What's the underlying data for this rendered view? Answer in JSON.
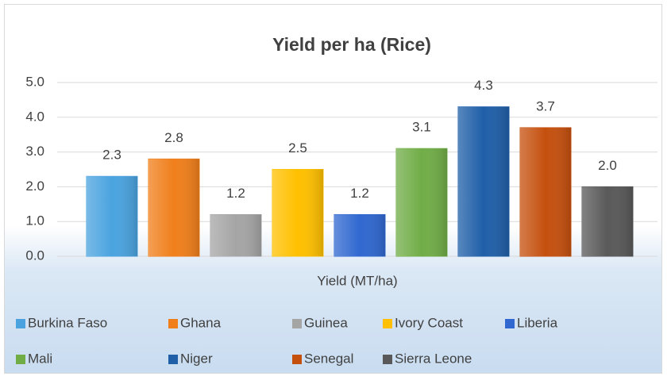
{
  "chart_data": {
    "type": "bar",
    "title": "Yield per ha (Rice)",
    "categories": [
      "Yield (MT/ha)"
    ],
    "series": [
      {
        "name": "Burkina Faso",
        "color": "#4aa3df",
        "values": [
          2.3
        ],
        "value_labels": [
          "2.3"
        ]
      },
      {
        "name": "Ghana",
        "color": "#f07f1b",
        "values": [
          2.8
        ],
        "value_labels": [
          "2.8"
        ]
      },
      {
        "name": "Guinea",
        "color": "#a5a5a5",
        "values": [
          1.2
        ],
        "value_labels": [
          "1.2"
        ]
      },
      {
        "name": "Ivory Coast",
        "color": "#ffc000",
        "values": [
          2.5
        ],
        "value_labels": [
          "2.5"
        ]
      },
      {
        "name": "Liberia",
        "color": "#3068d0",
        "values": [
          1.2
        ],
        "value_labels": [
          "1.2"
        ]
      },
      {
        "name": "Mali",
        "color": "#70ad47",
        "values": [
          3.1
        ],
        "value_labels": [
          "3.1"
        ]
      },
      {
        "name": "Niger",
        "color": "#1f5fa8",
        "values": [
          4.3
        ],
        "value_labels": [
          "4.3"
        ]
      },
      {
        "name": "Senegal",
        "color": "#c5500e",
        "values": [
          3.7
        ],
        "value_labels": [
          "3.7"
        ]
      },
      {
        "name": "Sierra Leone",
        "color": "#595959",
        "values": [
          2.0
        ],
        "value_labels": [
          "2.0"
        ]
      }
    ],
    "ylim": [
      0,
      5
    ],
    "yticks": [
      {
        "value": 0,
        "label": "0.0"
      },
      {
        "value": 1,
        "label": "1.0"
      },
      {
        "value": 2,
        "label": "2.0"
      },
      {
        "value": 3,
        "label": "3.0"
      },
      {
        "value": 4,
        "label": "4.0"
      },
      {
        "value": 5,
        "label": "5.0"
      }
    ],
    "grid": true,
    "legend": "bottom"
  }
}
